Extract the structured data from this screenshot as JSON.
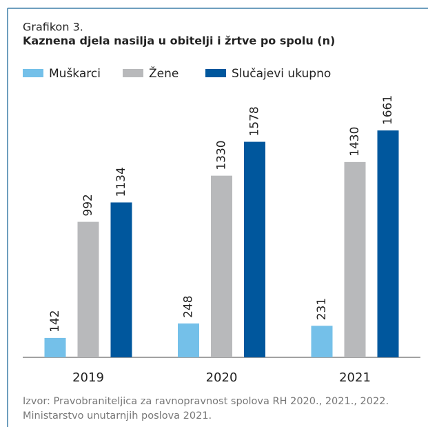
{
  "chart_data": {
    "type": "bar",
    "label": "Grafikon 3.",
    "title": "Kaznena djela nasilja u obitelji i žrtve po spolu (n)",
    "categories": [
      "2019",
      "2020",
      "2021"
    ],
    "series": [
      {
        "name": "Muškarci",
        "color": "#74c0e9",
        "values": [
          142,
          248,
          231
        ]
      },
      {
        "name": "Žene",
        "color": "#b8b9bb",
        "values": [
          992,
          1330,
          1430
        ]
      },
      {
        "name": "Slučajevi ukupno",
        "color": "#00579d",
        "values": [
          1134,
          1578,
          1661
        ]
      }
    ],
    "source": [
      "Izvor: Pravobraniteljica za ravnopravnost spolova RH 2020., 2021., 2022.",
      "Ministarstvo unutarnjih poslova 2021."
    ]
  }
}
